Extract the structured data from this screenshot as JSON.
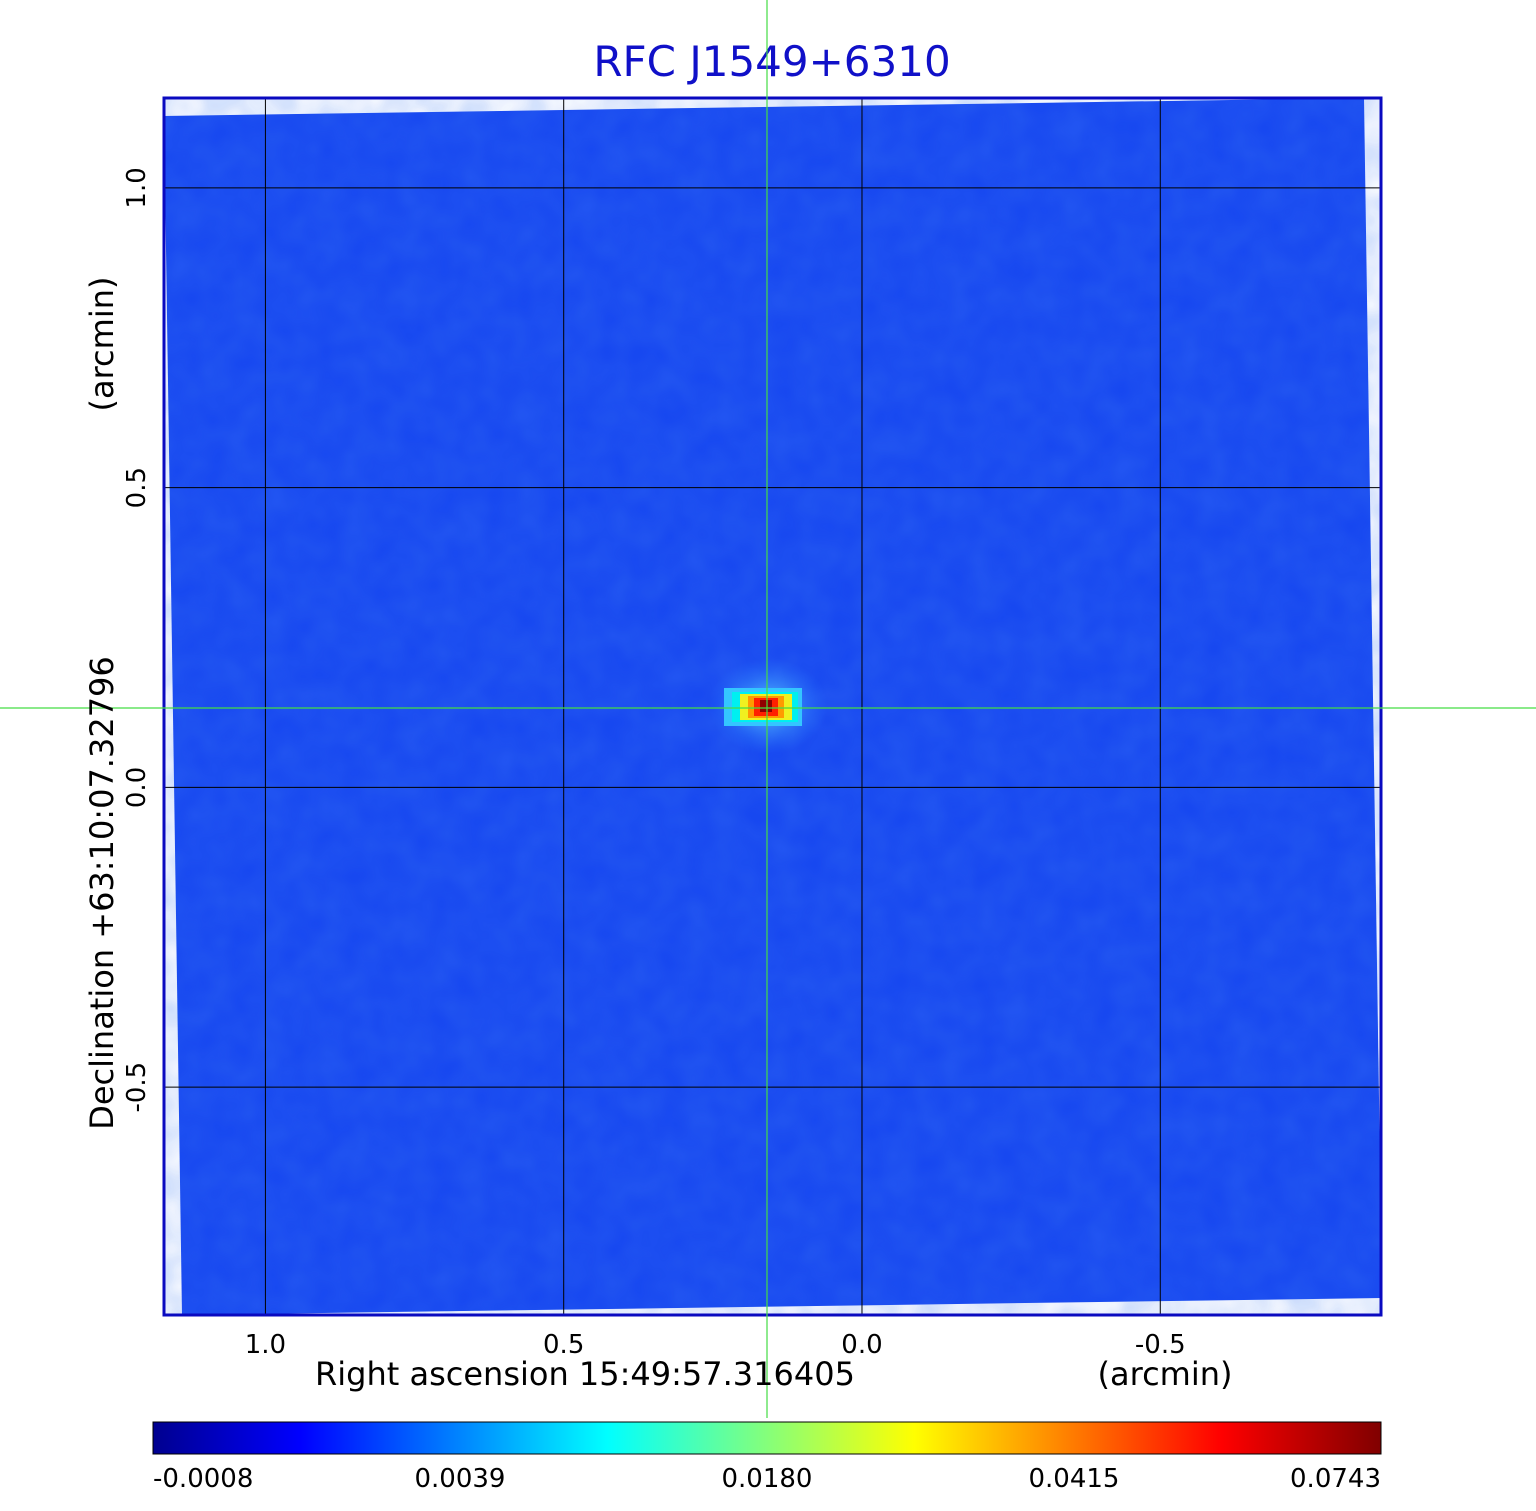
{
  "chart_data": {
    "type": "heatmap",
    "title": "RFC J1549+6310",
    "xlabel": "Right ascension  15:49:57.316405",
    "xunit": "(arcmin)",
    "ylabel": "Declination  +63:10:07.32796",
    "yunit": "(arcmin)",
    "x_range": [
      1.17,
      -0.87
    ],
    "y_range": [
      -0.88,
      1.15
    ],
    "x_ticks": [
      1.0,
      0.5,
      0.0,
      -0.5
    ],
    "x_tick_labels": [
      "1.0",
      "0.5",
      "0.0",
      "-0.5"
    ],
    "y_ticks": [
      1.0,
      0.5,
      0.0,
      -0.5
    ],
    "y_tick_labels": [
      "1.0",
      "0.5",
      "0.0",
      "-0.5"
    ],
    "grid": true,
    "source_peak": {
      "x": 0.16,
      "y": 0.13,
      "value": 0.0743
    },
    "crosshair": {
      "x": 0.16,
      "y": 0.13
    },
    "colorbar": {
      "colormap": "jet",
      "tick_labels": [
        "-0.0008",
        "0.0039",
        "0.0180",
        "0.0415",
        "0.0743"
      ],
      "min": -0.0008,
      "max": 0.0743
    }
  },
  "colors": {
    "title": "#1010c8",
    "frame": "#0a0ac0",
    "grid": "#000000",
    "crosshair": "#44dd44",
    "background_map": "#1646f0"
  }
}
